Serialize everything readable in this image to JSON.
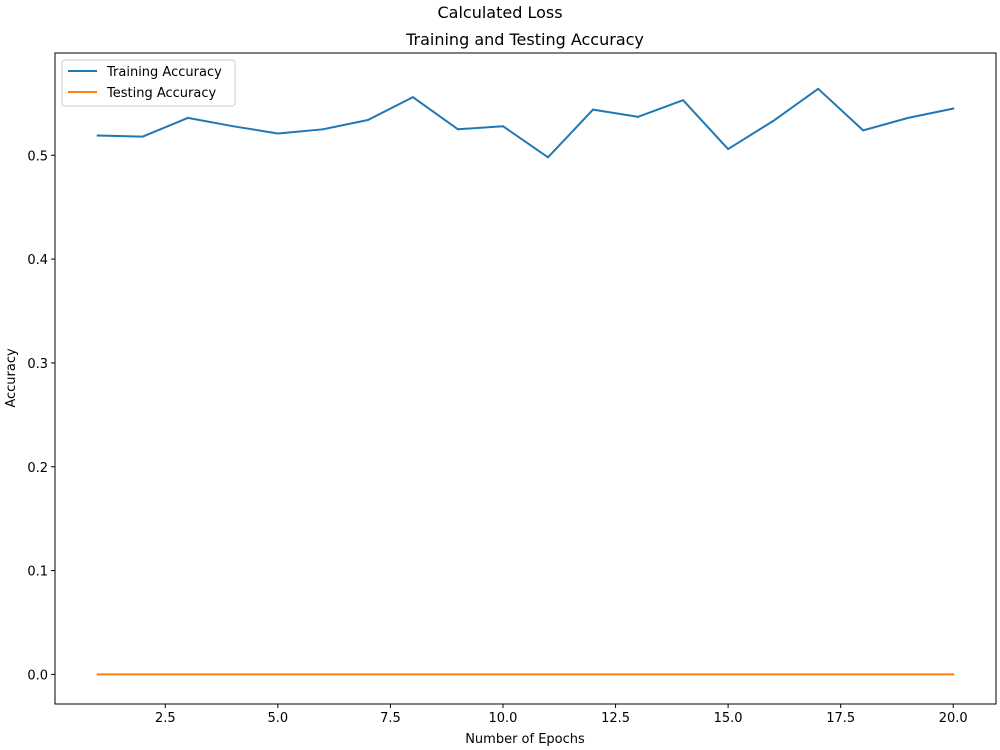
{
  "figure": {
    "suptitle": "Calculated Loss"
  },
  "chart_data": {
    "type": "line",
    "title": "Training and Testing Accuracy",
    "xlabel": "Number of Epochs",
    "ylabel": "Accuracy",
    "xlim": [
      0.05,
      20.95
    ],
    "ylim": [
      -0.0285,
      0.5985
    ],
    "xticks": [
      2.5,
      5.0,
      7.5,
      10.0,
      12.5,
      15.0,
      17.5,
      20.0
    ],
    "xtick_labels": [
      "2.5",
      "5.0",
      "7.5",
      "10.0",
      "12.5",
      "15.0",
      "17.5",
      "20.0"
    ],
    "yticks": [
      0.0,
      0.1,
      0.2,
      0.3,
      0.4,
      0.5
    ],
    "ytick_labels": [
      "0.0",
      "0.1",
      "0.2",
      "0.3",
      "0.4",
      "0.5"
    ],
    "grid": false,
    "legend_position": "upper-left",
    "x": [
      1,
      2,
      3,
      4,
      5,
      6,
      7,
      8,
      9,
      10,
      11,
      12,
      13,
      14,
      15,
      16,
      17,
      18,
      19,
      20
    ],
    "series": [
      {
        "name": "Training Accuracy",
        "color": "#1f77b4",
        "values": [
          0.519,
          0.518,
          0.536,
          0.528,
          0.521,
          0.525,
          0.534,
          0.556,
          0.525,
          0.528,
          0.498,
          0.544,
          0.537,
          0.553,
          0.506,
          0.533,
          0.564,
          0.524,
          0.536,
          0.545
        ]
      },
      {
        "name": "Testing Accuracy",
        "color": "#ff7f0e",
        "values": [
          0,
          0,
          0,
          0,
          0,
          0,
          0,
          0,
          0,
          0,
          0,
          0,
          0,
          0,
          0,
          0,
          0,
          0,
          0,
          0
        ]
      }
    ]
  }
}
